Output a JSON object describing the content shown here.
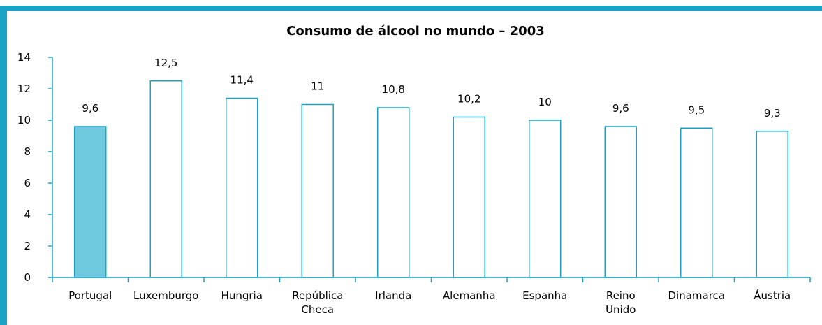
{
  "chart_data": {
    "type": "bar",
    "title": "Consumo de álcool no mundo – 2003",
    "xlabel": "",
    "ylabel": "",
    "ylim": [
      0,
      14
    ],
    "yticks": [
      "0",
      "2",
      "4",
      "6",
      "8",
      "10",
      "12",
      "14"
    ],
    "categories": [
      [
        "Portugal"
      ],
      [
        "Luxemburgo"
      ],
      [
        "Hungria"
      ],
      [
        "República",
        "Checa"
      ],
      [
        "Irlanda"
      ],
      [
        "Alemanha"
      ],
      [
        "Espanha"
      ],
      [
        "Reino",
        "Unido"
      ],
      [
        "Dinamarca"
      ],
      [
        "Áustria"
      ]
    ],
    "values": [
      9.6,
      12.5,
      11.4,
      11,
      10.8,
      10.2,
      10,
      9.6,
      9.5,
      9.3
    ],
    "value_labels": [
      "9,6",
      "12,5",
      "11,4",
      "11",
      "10,8",
      "10,2",
      "10",
      "9,6",
      "9,5",
      "9,3"
    ],
    "highlight_index": 0,
    "grid": false,
    "colors": {
      "border": "#1aa3c6",
      "bar_stroke": "#1aa3c6",
      "bar_highlight_fill": "#6fcae0",
      "bar_fill": "#ffffff",
      "axis": "#1aa3c6"
    }
  }
}
